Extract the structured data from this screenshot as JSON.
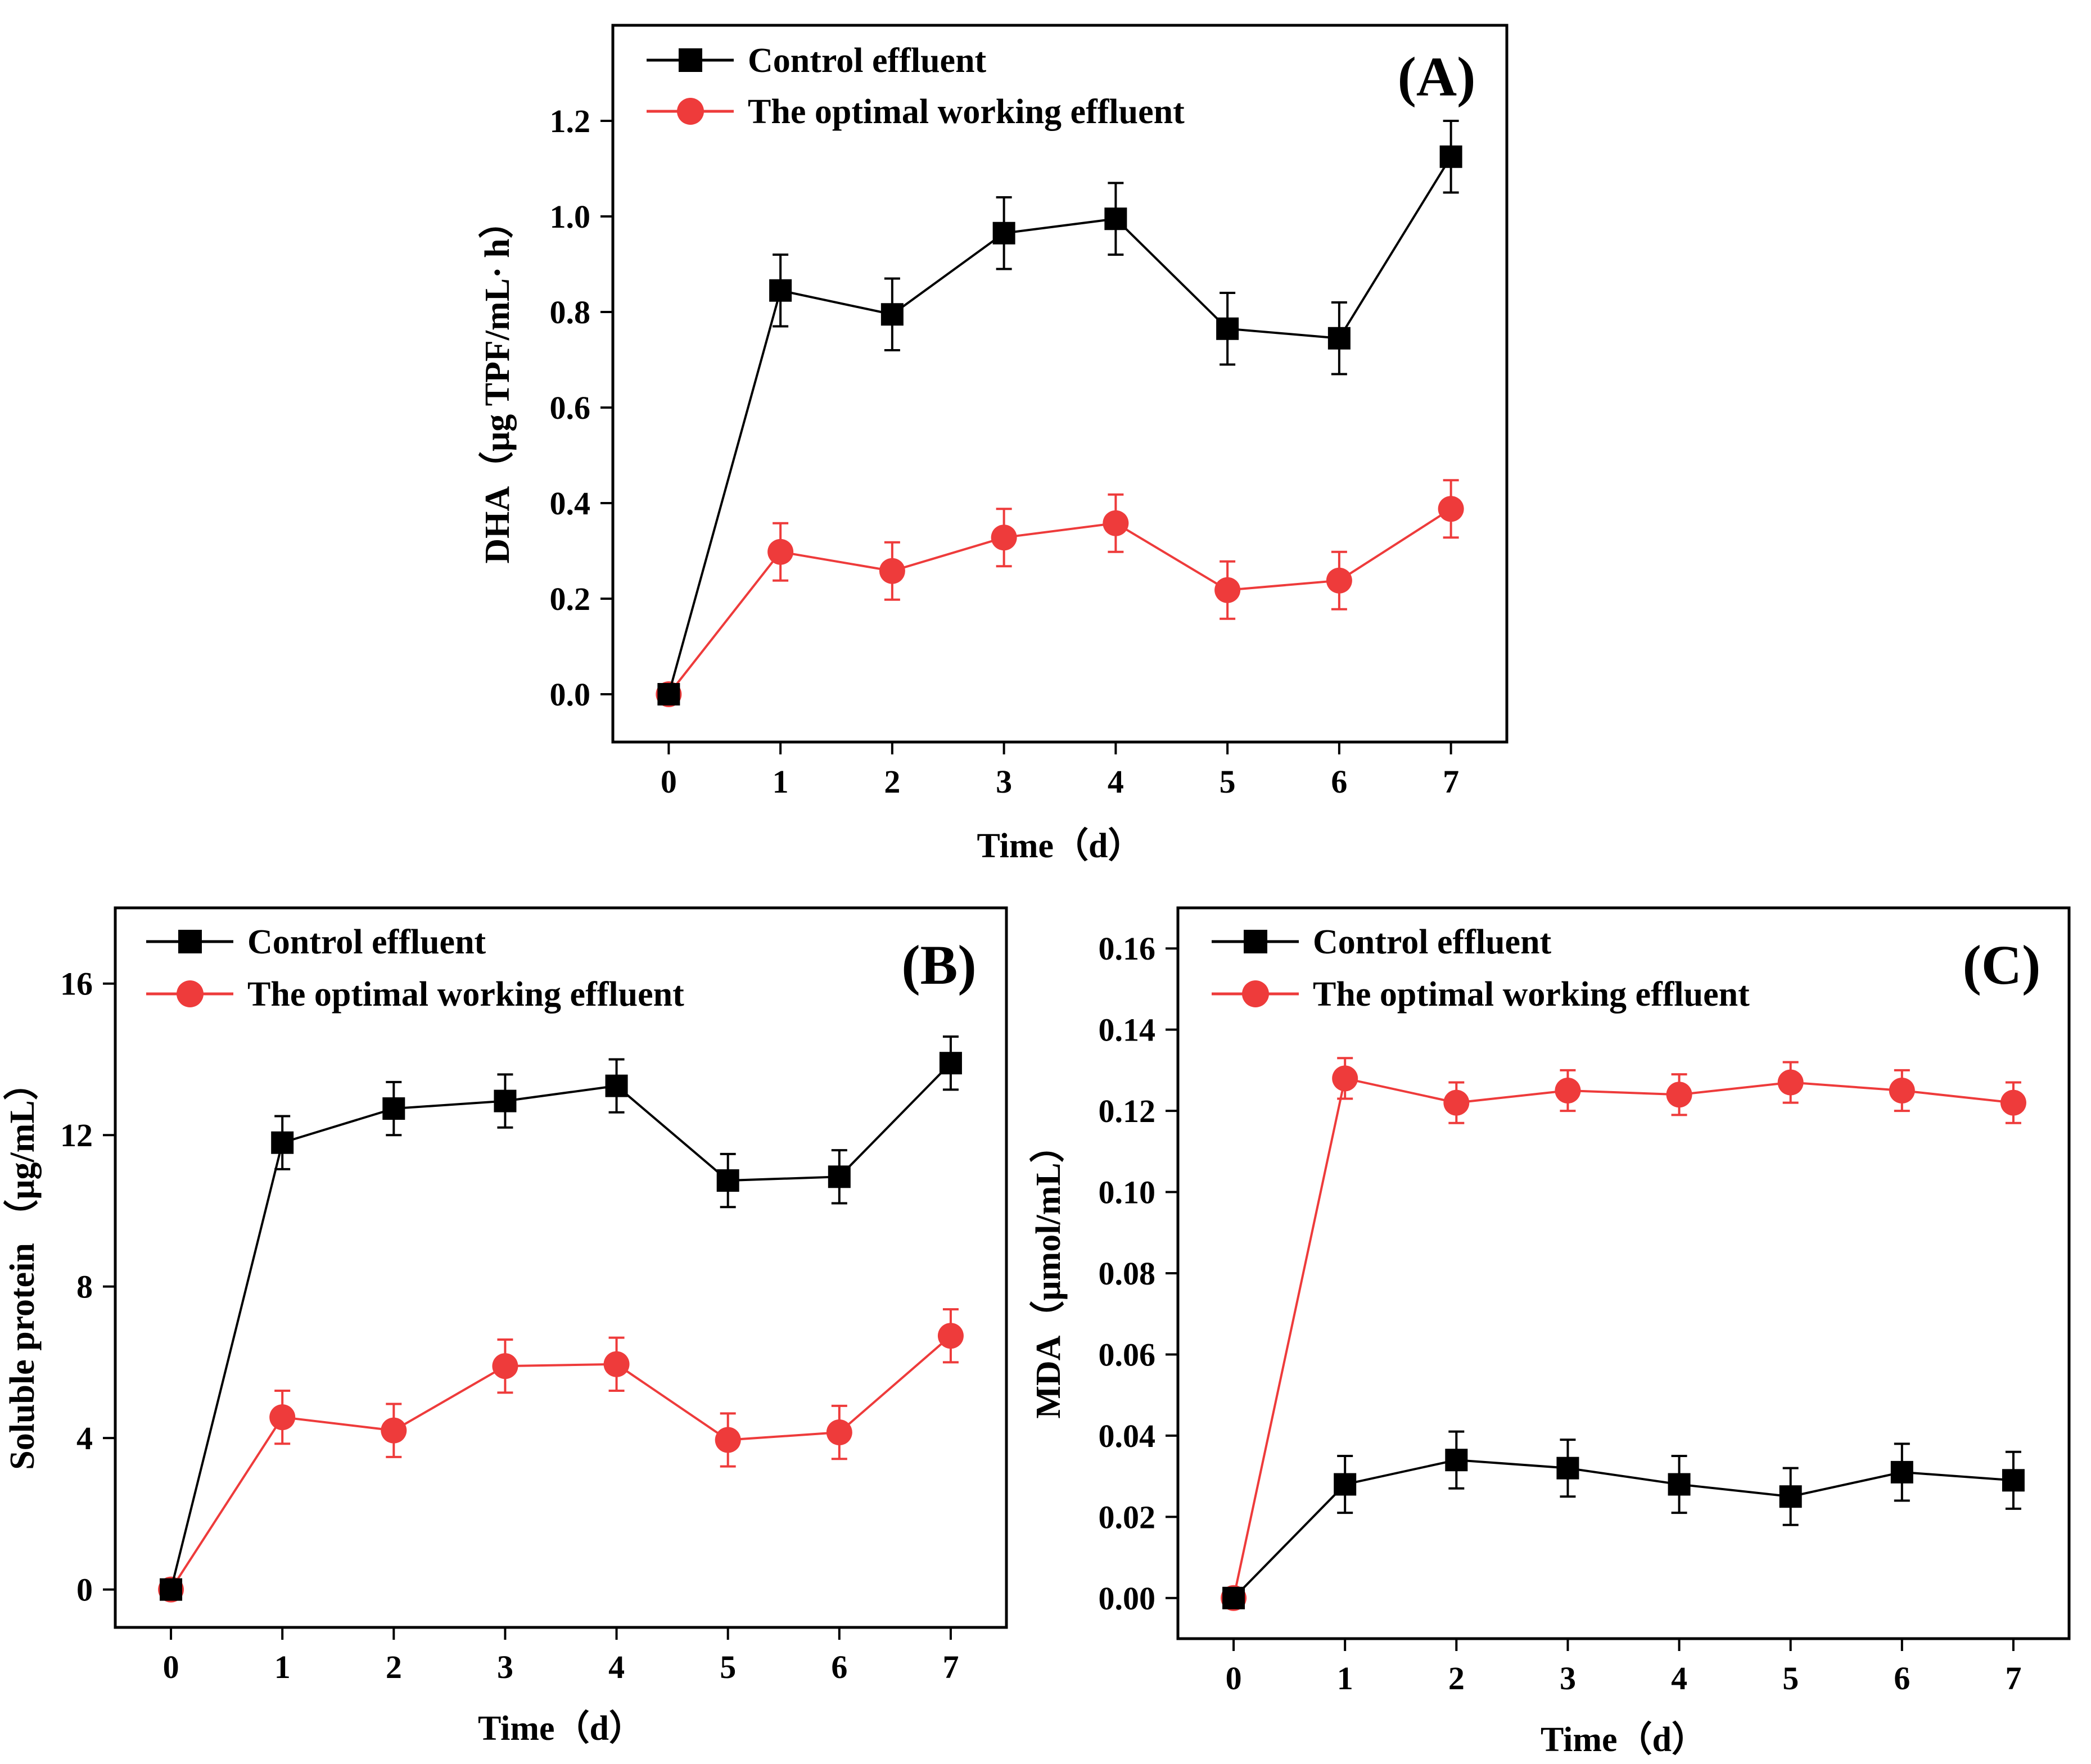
{
  "colors": {
    "control": "#000000",
    "optimal": "#ee3b3b",
    "axis": "#000000"
  },
  "legend": [
    "Control effluent",
    "The optimal working effluent"
  ],
  "chart_data": [
    {
      "id": "A",
      "type": "line",
      "panel_label": "(A)",
      "xlabel": "Time（d）",
      "ylabel": "DHA（μg TPF/mL· h）",
      "xlim": [
        -0.5,
        7.5
      ],
      "ylim": [
        -0.1,
        1.4
      ],
      "x_ticks": [
        0,
        1,
        2,
        3,
        4,
        5,
        6,
        7
      ],
      "x_tick_labels": [
        "0",
        "1",
        "2",
        "3",
        "4",
        "5",
        "6",
        "7"
      ],
      "y_ticks": [
        0,
        0.2,
        0.4,
        0.6,
        0.8,
        1.0,
        1.2
      ],
      "y_tick_labels": [
        "0.0",
        "0.2",
        "0.4",
        "0.6",
        "0.8",
        "1.0",
        "1.2"
      ],
      "x": [
        0,
        1,
        2,
        3,
        4,
        5,
        6,
        7
      ],
      "series": [
        {
          "name": "Control effluent",
          "marker": "square",
          "color_key": "control",
          "values": [
            0,
            0.845,
            0.795,
            0.965,
            0.995,
            0.765,
            0.745,
            1.125
          ],
          "errors": [
            0,
            0.075,
            0.075,
            0.075,
            0.075,
            0.075,
            0.075,
            0.075
          ]
        },
        {
          "name": "The optimal working effluent",
          "marker": "circle",
          "color_key": "optimal",
          "values": [
            0,
            0.298,
            0.258,
            0.328,
            0.358,
            0.218,
            0.238,
            0.388
          ],
          "errors": [
            0,
            0.06,
            0.06,
            0.06,
            0.06,
            0.06,
            0.06,
            0.06
          ]
        }
      ]
    },
    {
      "id": "B",
      "type": "line",
      "panel_label": "(B)",
      "xlabel": "Time（d）",
      "ylabel": "Soluble protein （μg/mL）",
      "xlim": [
        -0.5,
        7.5
      ],
      "ylim": [
        -1,
        18
      ],
      "x_ticks": [
        0,
        1,
        2,
        3,
        4,
        5,
        6,
        7
      ],
      "x_tick_labels": [
        "0",
        "1",
        "2",
        "3",
        "4",
        "5",
        "6",
        "7"
      ],
      "y_ticks": [
        0,
        4,
        8,
        12,
        16
      ],
      "y_tick_labels": [
        "0",
        "4",
        "8",
        "12",
        "16"
      ],
      "x": [
        0,
        1,
        2,
        3,
        4,
        5,
        6,
        7
      ],
      "series": [
        {
          "name": "Control effluent",
          "marker": "square",
          "color_key": "control",
          "values": [
            0,
            11.8,
            12.7,
            12.9,
            13.3,
            10.8,
            10.9,
            13.9
          ],
          "errors": [
            0,
            0.7,
            0.7,
            0.7,
            0.7,
            0.7,
            0.7,
            0.7
          ]
        },
        {
          "name": "The optimal working effluent",
          "marker": "circle",
          "color_key": "optimal",
          "values": [
            0,
            4.55,
            4.2,
            5.9,
            5.95,
            3.95,
            4.15,
            6.7
          ],
          "errors": [
            0,
            0.7,
            0.7,
            0.7,
            0.7,
            0.7,
            0.7,
            0.7
          ]
        }
      ]
    },
    {
      "id": "C",
      "type": "line",
      "panel_label": "(C)",
      "xlabel": "Time（d）",
      "ylabel": "MDA（μmol/mL）",
      "xlim": [
        -0.5,
        7.5
      ],
      "ylim": [
        -0.01,
        0.17
      ],
      "x_ticks": [
        0,
        1,
        2,
        3,
        4,
        5,
        6,
        7
      ],
      "x_tick_labels": [
        "0",
        "1",
        "2",
        "3",
        "4",
        "5",
        "6",
        "7"
      ],
      "y_ticks": [
        0,
        0.02,
        0.04,
        0.06,
        0.08,
        0.1,
        0.12,
        0.14,
        0.16
      ],
      "y_tick_labels": [
        "0.00",
        "0.02",
        "0.04",
        "0.06",
        "0.08",
        "0.10",
        "0.12",
        "0.14",
        "0.16"
      ],
      "x": [
        0,
        1,
        2,
        3,
        4,
        5,
        6,
        7
      ],
      "series": [
        {
          "name": "Control effluent",
          "marker": "square",
          "color_key": "control",
          "values": [
            0,
            0.028,
            0.034,
            0.032,
            0.028,
            0.025,
            0.031,
            0.029
          ],
          "errors": [
            0,
            0.007,
            0.007,
            0.007,
            0.007,
            0.007,
            0.007,
            0.007
          ]
        },
        {
          "name": "The optimal working effluent",
          "marker": "circle",
          "color_key": "optimal",
          "values": [
            0,
            0.128,
            0.122,
            0.125,
            0.124,
            0.127,
            0.125,
            0.122
          ],
          "errors": [
            0,
            0.005,
            0.005,
            0.005,
            0.005,
            0.005,
            0.005,
            0.005
          ]
        }
      ]
    }
  ]
}
